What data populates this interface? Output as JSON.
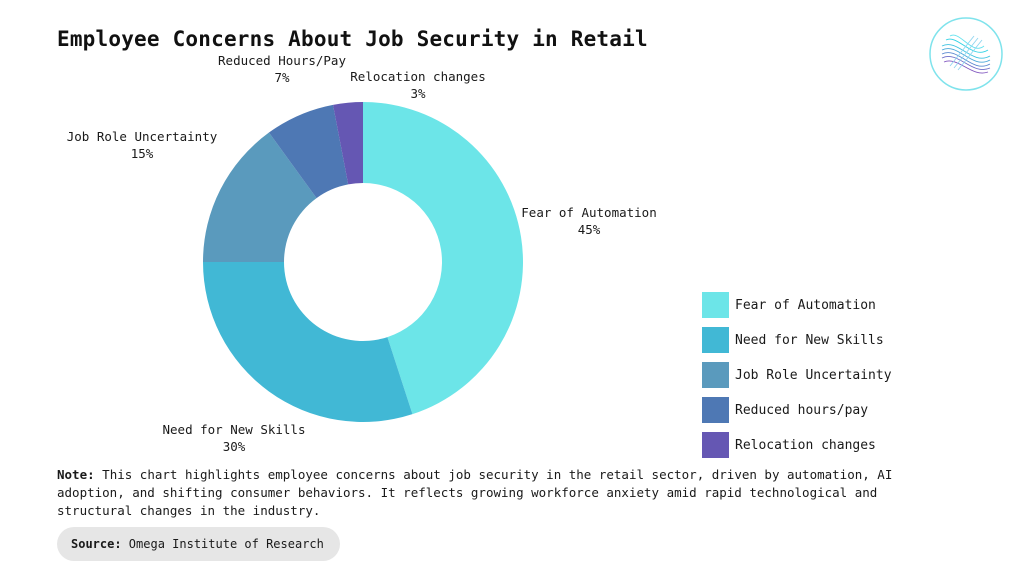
{
  "title": "Employee Concerns About Job Security in Retail",
  "chart_data": {
    "type": "pie",
    "donut": true,
    "categories": [
      "Fear of Automation",
      "Need for New Skills",
      "Job Role Uncertainty",
      "Reduced Hours/Pay",
      "Relocation changes"
    ],
    "values": [
      45,
      30,
      15,
      7,
      3
    ],
    "value_labels": [
      "45%",
      "30%",
      "15%",
      "7%",
      "3%"
    ],
    "colors": [
      "#6ce5e8",
      "#41b8d5",
      "#5a9abd",
      "#4e78b4",
      "#6557b3"
    ]
  },
  "legend": {
    "placement": "bottom-right",
    "items": [
      {
        "label": "Fear of Automation",
        "color": "#6ce5e8"
      },
      {
        "label": "Need for New Skills",
        "color": "#41b8d5"
      },
      {
        "label": "Job Role Uncertainty",
        "color": "#5a9abd"
      },
      {
        "label": "Reduced hours/pay",
        "color": "#4e78b4"
      },
      {
        "label": "Relocation changes",
        "color": "#6557b3"
      }
    ]
  },
  "note": {
    "label": "Note:",
    "text": " This chart highlights employee concerns about job security in the retail sector, driven by automation, AI adoption, and shifting consumer behaviors. It reflects growing workforce anxiety amid rapid technological and structural changes in the industry."
  },
  "source": {
    "label": "Source:",
    "text": " Omega Institute of Research"
  }
}
